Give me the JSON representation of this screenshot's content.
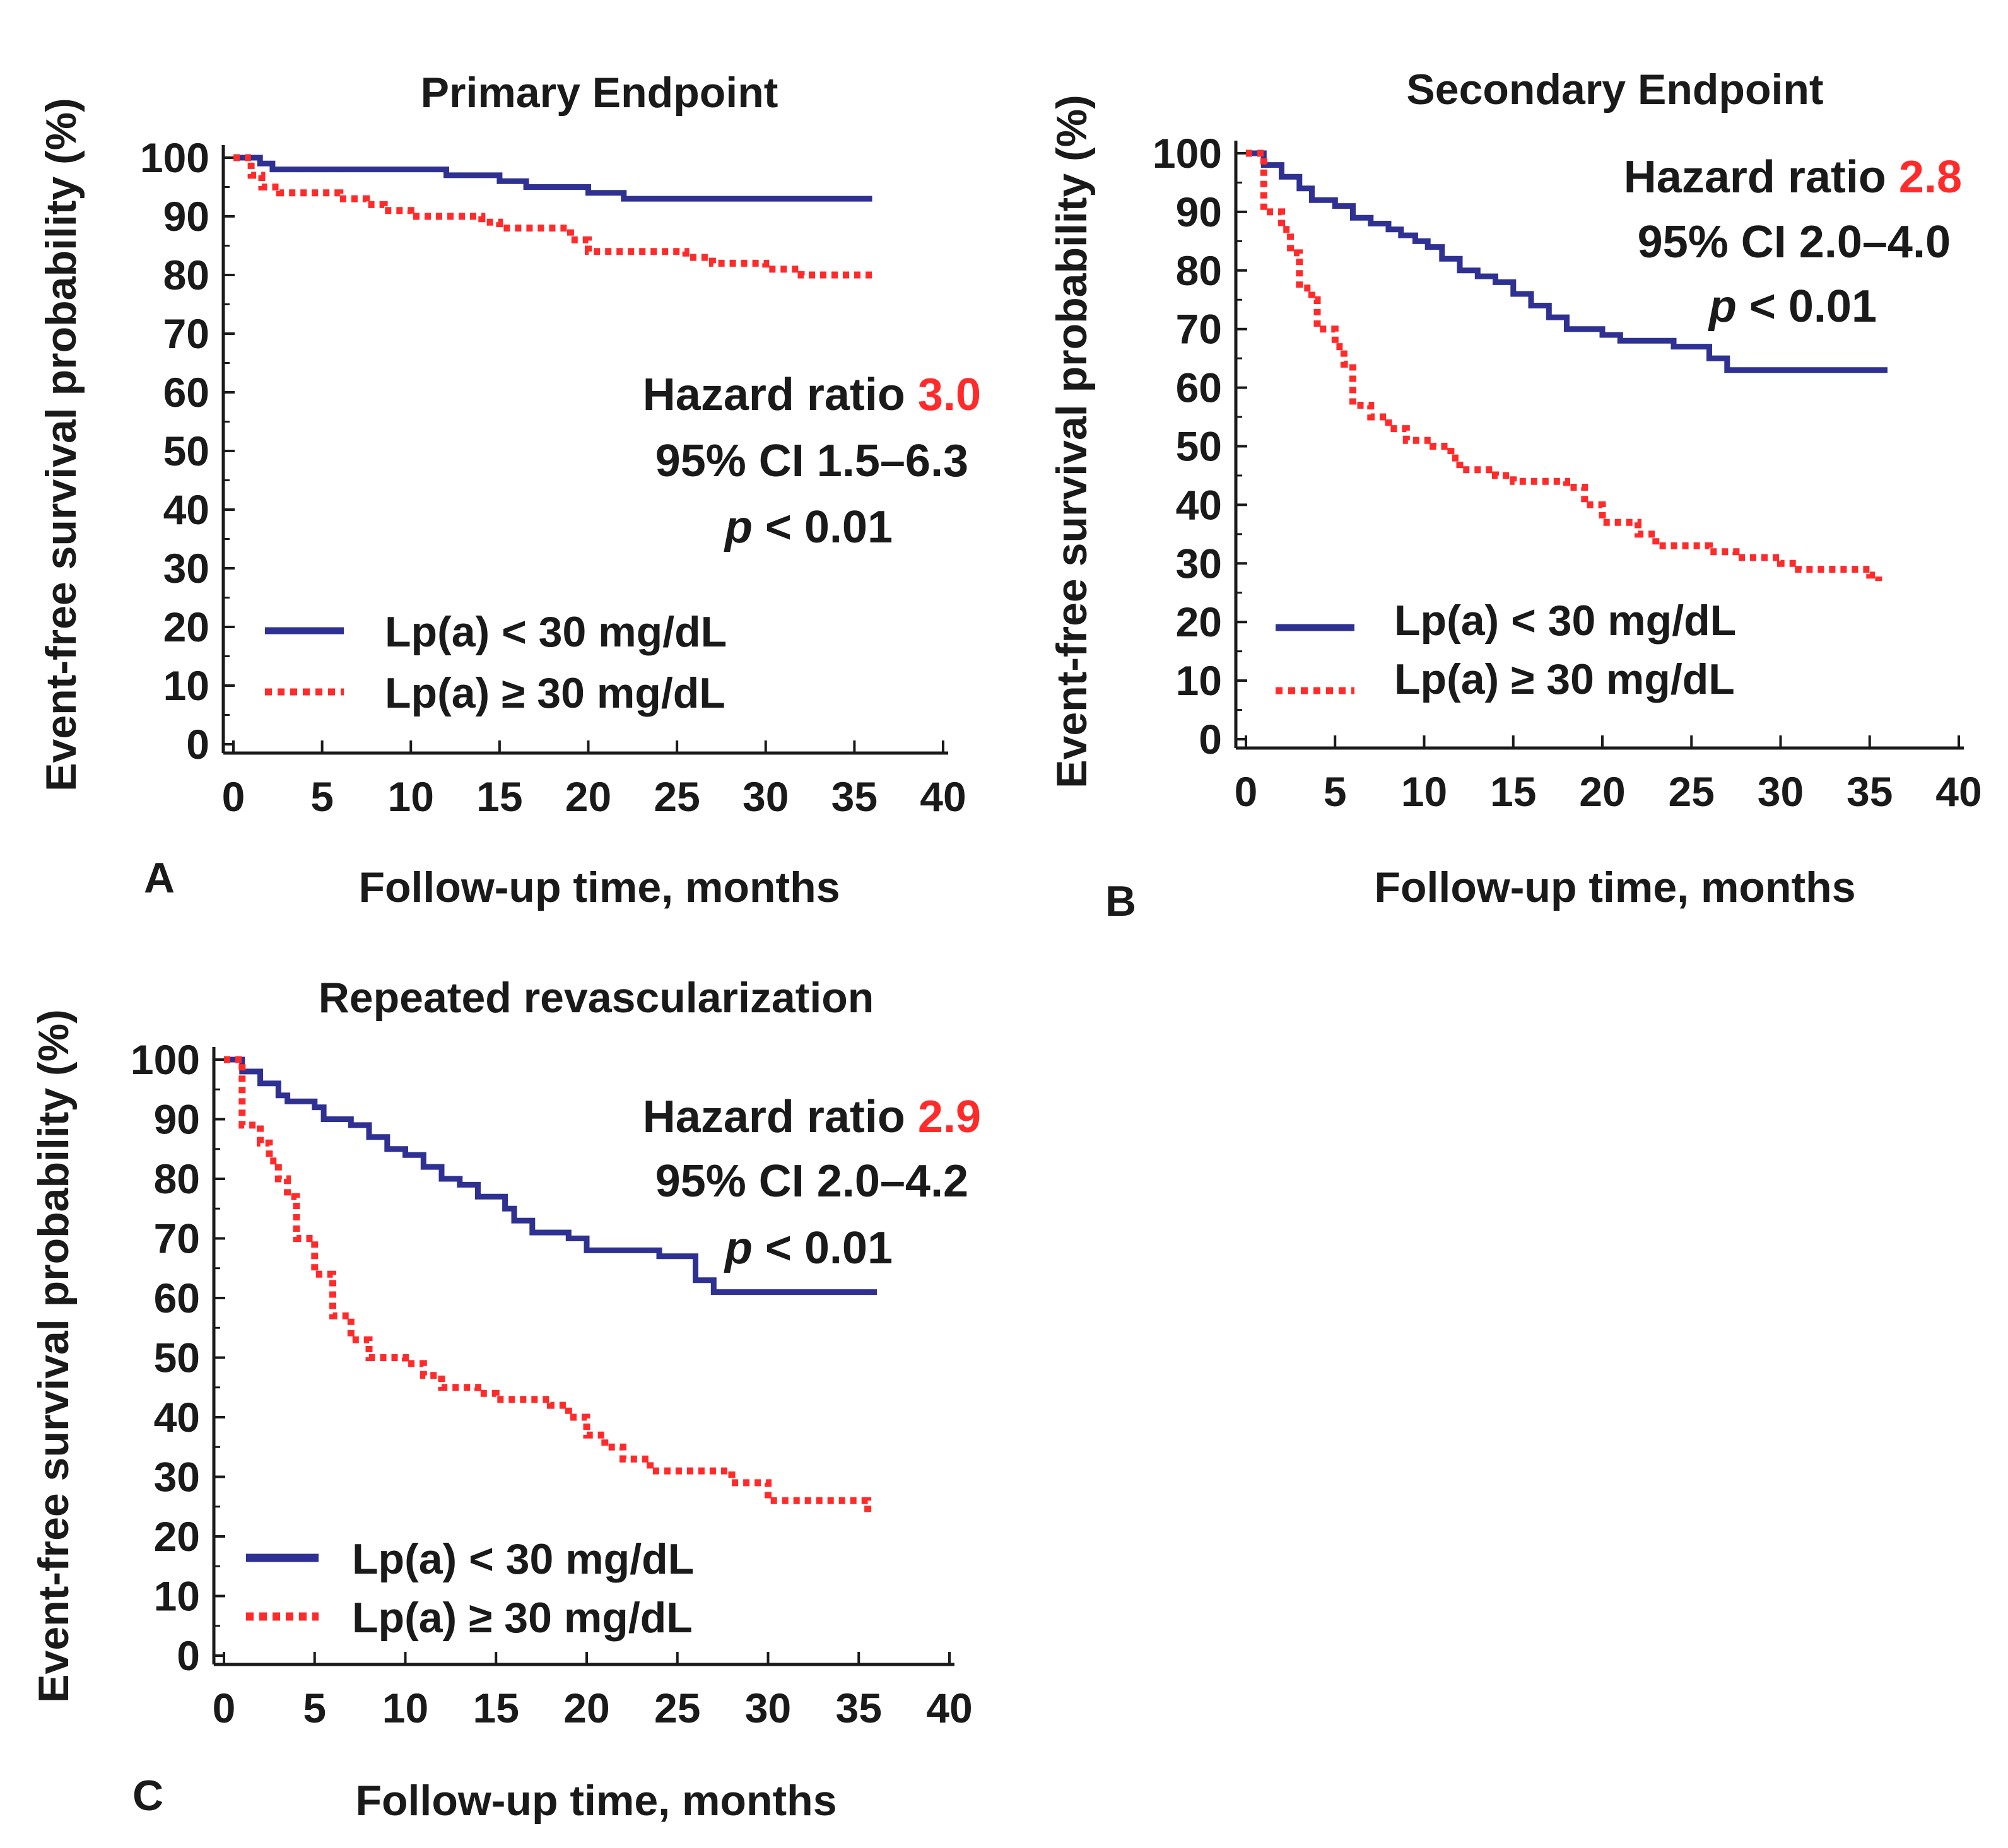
{
  "chart_data": [
    {
      "type": "line",
      "panel_label": "A",
      "title": "Primary Endpoint",
      "xlabel": "Follow-up time, months",
      "ylabel": "Event-free survival probability (%)",
      "xlim": [
        0,
        40
      ],
      "ylim": [
        0,
        100
      ],
      "x_ticks": [
        "0",
        "5",
        "10",
        "15",
        "20",
        "25",
        "30",
        "35",
        "40"
      ],
      "y_ticks": [
        "0",
        "10",
        "20",
        "30",
        "40",
        "50",
        "60",
        "70",
        "80",
        "90",
        "100"
      ],
      "annotation": {
        "hr_label": "Hazard ratio",
        "hr_value": "3.0",
        "ci": "95% CI 1.5–6.3",
        "p_italic": "p",
        "p_rest": "< 0.01"
      },
      "legend": [
        "Lp(a) < 30 mg/dL",
        "Lp(a) ≥ 30 mg/dL"
      ],
      "series": [
        {
          "name": "Lp(a) < 30 mg/dL",
          "color": "#2e3192",
          "style": "solid",
          "points": [
            [
              0,
              100
            ],
            [
              1.5,
              99
            ],
            [
              2.2,
              98
            ],
            [
              12,
              97
            ],
            [
              15,
              96
            ],
            [
              16.5,
              95
            ],
            [
              20,
              94
            ],
            [
              22,
              93
            ],
            [
              36,
              93
            ]
          ]
        },
        {
          "name": "Lp(a) ≥ 30 mg/dL",
          "color": "#ff2a2a",
          "style": "dotted",
          "points": [
            [
              0,
              100
            ],
            [
              1,
              97
            ],
            [
              1.6,
              95
            ],
            [
              2.6,
              94
            ],
            [
              6,
              93
            ],
            [
              7.5,
              92
            ],
            [
              8.5,
              91
            ],
            [
              10,
              90
            ],
            [
              14,
              89
            ],
            [
              15,
              88
            ],
            [
              19,
              86
            ],
            [
              20,
              84
            ],
            [
              25.5,
              83
            ],
            [
              27,
              82
            ],
            [
              30,
              81
            ],
            [
              32,
              80
            ],
            [
              36,
              80
            ]
          ]
        }
      ]
    },
    {
      "type": "line",
      "panel_label": "B",
      "title": "Secondary Endpoint",
      "xlabel": "Follow-up time, months",
      "ylabel": "Event-free survival probability (%)",
      "xlim": [
        0,
        40
      ],
      "ylim": [
        0,
        100
      ],
      "x_ticks": [
        "0",
        "5",
        "10",
        "15",
        "20",
        "25",
        "30",
        "35",
        "40"
      ],
      "y_ticks": [
        "0",
        "10",
        "20",
        "30",
        "40",
        "50",
        "60",
        "70",
        "80",
        "90",
        "100"
      ],
      "annotation": {
        "hr_label": "Hazard ratio",
        "hr_value": "2.8",
        "ci": "95% CI 2.0–4.0",
        "p_italic": "p",
        "p_rest": "< 0.01"
      },
      "legend": [
        "Lp(a) < 30 mg/dL",
        "Lp(a) ≥ 30 mg/dL"
      ],
      "series": [
        {
          "name": "Lp(a) < 30 mg/dL",
          "color": "#2e3192",
          "style": "solid",
          "points": [
            [
              0,
              100
            ],
            [
              1,
              98
            ],
            [
              2,
              96
            ],
            [
              3,
              94
            ],
            [
              3.7,
              92
            ],
            [
              5,
              91
            ],
            [
              6,
              89
            ],
            [
              7,
              88
            ],
            [
              8,
              87
            ],
            [
              8.7,
              86
            ],
            [
              9.5,
              85
            ],
            [
              10.2,
              84
            ],
            [
              11,
              82
            ],
            [
              12,
              80
            ],
            [
              13,
              79
            ],
            [
              14,
              78
            ],
            [
              15,
              76
            ],
            [
              16,
              74
            ],
            [
              17,
              72
            ],
            [
              18,
              70
            ],
            [
              20,
              69
            ],
            [
              21,
              68
            ],
            [
              24,
              67
            ],
            [
              26,
              65
            ],
            [
              27,
              63
            ],
            [
              36,
              63
            ]
          ]
        },
        {
          "name": "Lp(a) ≥ 30 mg/dL",
          "color": "#ff2a2a",
          "style": "dotted",
          "points": [
            [
              0,
              100
            ],
            [
              1,
              90
            ],
            [
              2,
              87
            ],
            [
              2.5,
              83
            ],
            [
              3,
              77
            ],
            [
              3.7,
              75
            ],
            [
              4,
              70
            ],
            [
              5,
              67
            ],
            [
              5.5,
              64
            ],
            [
              6,
              57
            ],
            [
              7,
              55
            ],
            [
              8,
              53
            ],
            [
              9,
              51
            ],
            [
              10.5,
              50
            ],
            [
              11.5,
              48
            ],
            [
              12,
              46
            ],
            [
              14,
              45
            ],
            [
              15,
              44
            ],
            [
              18,
              43
            ],
            [
              19,
              40
            ],
            [
              20,
              37
            ],
            [
              22,
              35
            ],
            [
              23,
              33
            ],
            [
              26,
              32
            ],
            [
              27.5,
              31
            ],
            [
              29.5,
              31
            ],
            [
              30,
              30
            ],
            [
              31,
              29
            ],
            [
              35,
              28
            ],
            [
              35.5,
              27
            ]
          ]
        }
      ]
    },
    {
      "type": "line",
      "panel_label": "C",
      "title": "Repeated revascularization",
      "xlabel": "Follow-up time, months",
      "ylabel": "Event-free survival probability (%)",
      "xlim": [
        0,
        40
      ],
      "ylim": [
        0,
        100
      ],
      "x_ticks": [
        "0",
        "5",
        "10",
        "15",
        "20",
        "25",
        "30",
        "35",
        "40"
      ],
      "y_ticks": [
        "0",
        "10",
        "20",
        "30",
        "40",
        "50",
        "60",
        "70",
        "80",
        "90",
        "100"
      ],
      "annotation": {
        "hr_label": "Hazard ratio",
        "hr_value": "2.9",
        "ci": "95% CI 2.0–4.2",
        "p_italic": "p",
        "p_rest": "< 0.01"
      },
      "legend": [
        "Lp(a) < 30 mg/dL",
        "Lp(a) ≥ 30 mg/dL"
      ],
      "series": [
        {
          "name": "Lp(a) < 30 mg/dL",
          "color": "#2e3192",
          "style": "solid",
          "points": [
            [
              0,
              100
            ],
            [
              1,
              98
            ],
            [
              2,
              96
            ],
            [
              3,
              94
            ],
            [
              3.5,
              93
            ],
            [
              5,
              92
            ],
            [
              5.5,
              90
            ],
            [
              7,
              89
            ],
            [
              8,
              87
            ],
            [
              9,
              85
            ],
            [
              10,
              84
            ],
            [
              11,
              82
            ],
            [
              12,
              80
            ],
            [
              13,
              79
            ],
            [
              14,
              77
            ],
            [
              15.5,
              75
            ],
            [
              16,
              73
            ],
            [
              17,
              71
            ],
            [
              19,
              70
            ],
            [
              20,
              68
            ],
            [
              24,
              67
            ],
            [
              26,
              63
            ],
            [
              27,
              61
            ],
            [
              36,
              61
            ]
          ]
        },
        {
          "name": "Lp(a) ≥ 30 mg/dL",
          "color": "#ff2a2a",
          "style": "dotted",
          "points": [
            [
              0,
              100
            ],
            [
              1,
              89
            ],
            [
              2,
              86
            ],
            [
              2.5,
              83
            ],
            [
              3,
              80
            ],
            [
              3.5,
              77
            ],
            [
              4,
              70
            ],
            [
              5,
              64
            ],
            [
              6,
              57
            ],
            [
              7,
              53
            ],
            [
              8,
              50
            ],
            [
              10,
              49
            ],
            [
              11,
              47
            ],
            [
              12,
              45
            ],
            [
              14,
              44
            ],
            [
              15,
              43
            ],
            [
              18,
              42
            ],
            [
              19,
              40
            ],
            [
              20,
              37
            ],
            [
              21,
              35
            ],
            [
              22,
              33
            ],
            [
              23.5,
              31
            ],
            [
              28,
              29
            ],
            [
              30,
              26
            ],
            [
              35,
              26
            ],
            [
              35.5,
              24
            ]
          ]
        }
      ]
    }
  ]
}
